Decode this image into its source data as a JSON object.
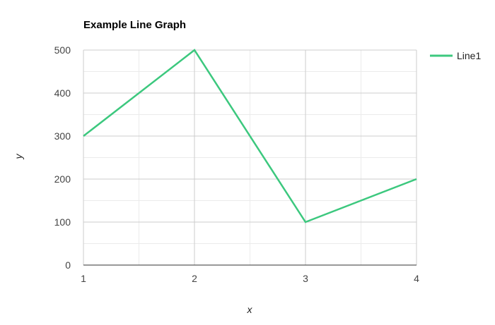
{
  "chart_data": {
    "type": "line",
    "title": "Example Line Graph",
    "xlabel": "x",
    "ylabel": "y",
    "x": [
      1,
      2,
      3,
      4
    ],
    "x_ticks": [
      "1",
      "2",
      "3",
      "4"
    ],
    "y_ticks": [
      "0",
      "100",
      "200",
      "300",
      "400",
      "500"
    ],
    "xlim": [
      1,
      4
    ],
    "ylim": [
      0,
      500
    ],
    "grid": true,
    "minor_grid": true,
    "legend_position": "right",
    "series": [
      {
        "name": "Line1",
        "values": [
          300,
          500,
          100,
          200
        ],
        "color": "#3cc87e"
      }
    ]
  }
}
